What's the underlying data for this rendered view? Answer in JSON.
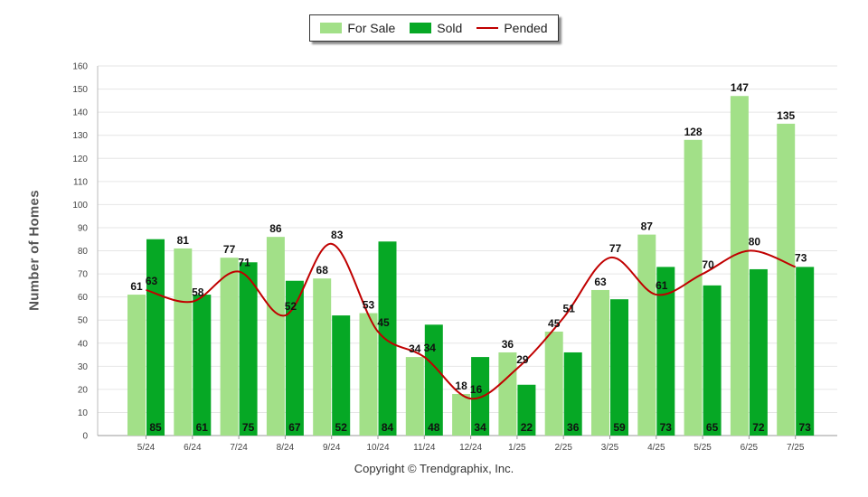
{
  "chart_data": {
    "type": "bar",
    "categories": [
      "5/24",
      "6/24",
      "7/24",
      "8/24",
      "9/24",
      "10/24",
      "11/24",
      "12/24",
      "1/25",
      "2/25",
      "3/25",
      "4/25",
      "5/25",
      "6/25",
      "7/25"
    ],
    "series": [
      {
        "name": "For Sale",
        "type": "bar",
        "color": "#a2e088",
        "values": [
          61,
          81,
          77,
          86,
          68,
          53,
          34,
          18,
          36,
          45,
          63,
          87,
          128,
          147,
          135
        ]
      },
      {
        "name": "Sold",
        "type": "bar",
        "color": "#06a825",
        "values": [
          85,
          61,
          75,
          67,
          52,
          84,
          48,
          34,
          22,
          36,
          59,
          73,
          65,
          72,
          73
        ]
      },
      {
        "name": "Pended",
        "type": "line",
        "color": "#c00000",
        "values": [
          63,
          58,
          71,
          52,
          83,
          45,
          34,
          16,
          29,
          51,
          77,
          61,
          70,
          80,
          73
        ]
      }
    ],
    "ylabel": "Number of Homes",
    "xlabel": "",
    "ylim": [
      0,
      160
    ],
    "yticks": [
      0,
      10,
      20,
      30,
      40,
      50,
      60,
      70,
      80,
      90,
      100,
      110,
      120,
      130,
      140,
      150,
      160
    ],
    "grid": true,
    "legend_position": "top-center"
  },
  "footer": {
    "copyright": "Copyright © Trendgraphix, Inc."
  }
}
